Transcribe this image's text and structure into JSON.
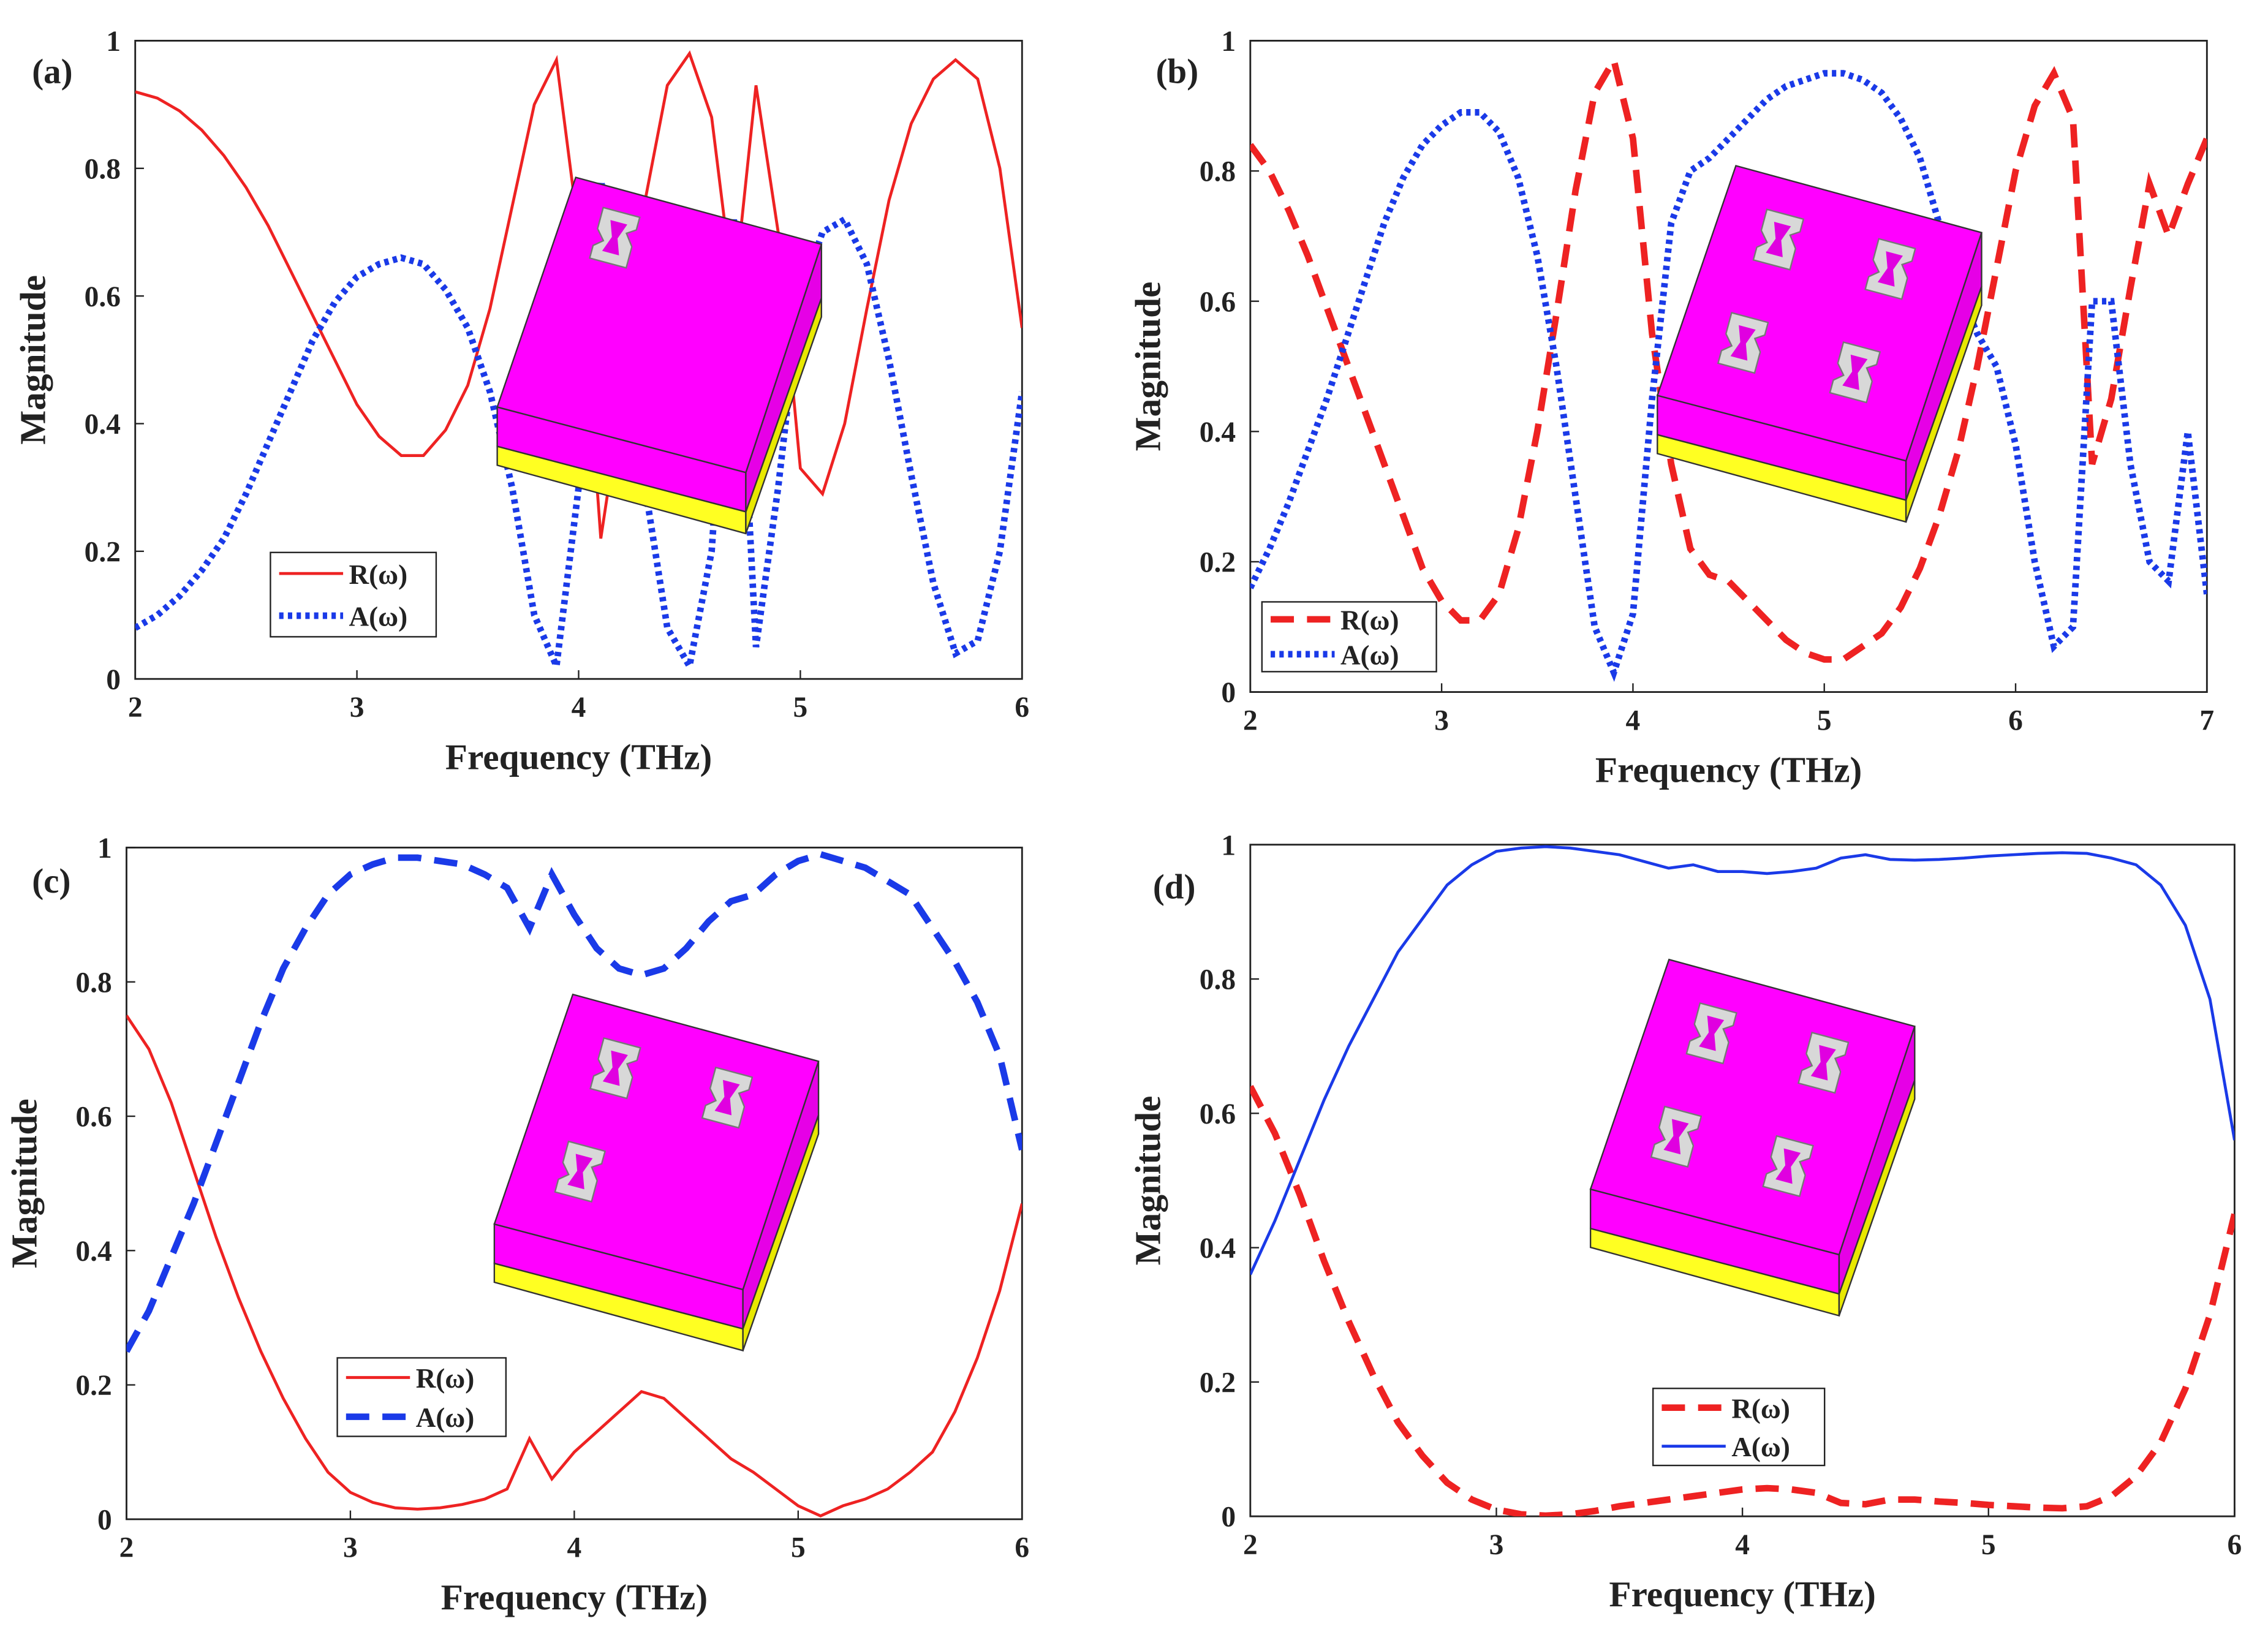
{
  "chart_data": [
    {
      "type": "line",
      "label": "(a)",
      "xlabel": "Frequency (THz)",
      "ylabel": "Magnitude",
      "xlim": [
        2,
        6
      ],
      "ylim": [
        0,
        1
      ],
      "xticks": [
        2,
        3,
        4,
        5,
        6
      ],
      "yticks": [
        0,
        0.2,
        0.4,
        0.6,
        0.8,
        1
      ],
      "x": [
        2.0,
        2.1,
        2.2,
        2.3,
        2.4,
        2.5,
        2.6,
        2.7,
        2.8,
        2.9,
        3.0,
        3.1,
        3.2,
        3.3,
        3.4,
        3.5,
        3.6,
        3.7,
        3.8,
        3.9,
        4.0,
        4.1,
        4.2,
        4.3,
        4.4,
        4.5,
        4.6,
        4.7,
        4.8,
        4.9,
        5.0,
        5.1,
        5.2,
        5.3,
        5.4,
        5.5,
        5.6,
        5.7,
        5.8,
        5.9,
        6.0
      ],
      "series": [
        {
          "name": "R(ω)",
          "color": "#ee2222",
          "style": "solid",
          "values": [
            0.92,
            0.91,
            0.89,
            0.86,
            0.82,
            0.77,
            0.71,
            0.64,
            0.57,
            0.5,
            0.43,
            0.38,
            0.35,
            0.35,
            0.39,
            0.46,
            0.58,
            0.74,
            0.9,
            0.97,
            0.7,
            0.22,
            0.45,
            0.75,
            0.93,
            0.98,
            0.88,
            0.6,
            0.93,
            0.7,
            0.33,
            0.29,
            0.4,
            0.58,
            0.75,
            0.87,
            0.94,
            0.97,
            0.94,
            0.8,
            0.55
          ]
        },
        {
          "name": "A(ω)",
          "color": "#1a3ae8",
          "style": "dotted",
          "values": [
            0.08,
            0.1,
            0.13,
            0.17,
            0.22,
            0.29,
            0.37,
            0.45,
            0.53,
            0.59,
            0.63,
            0.65,
            0.66,
            0.65,
            0.61,
            0.55,
            0.45,
            0.3,
            0.1,
            0.02,
            0.3,
            0.78,
            0.65,
            0.3,
            0.08,
            0.02,
            0.2,
            0.72,
            0.05,
            0.3,
            0.6,
            0.7,
            0.72,
            0.65,
            0.5,
            0.32,
            0.15,
            0.04,
            0.06,
            0.2,
            0.45
          ]
        }
      ]
    },
    {
      "type": "line",
      "label": "(b)",
      "xlabel": "Frequency (THz)",
      "ylabel": "Magnitude",
      "xlim": [
        2,
        7
      ],
      "ylim": [
        0,
        1
      ],
      "xticks": [
        2,
        3,
        4,
        5,
        6,
        7
      ],
      "yticks": [
        0,
        0.2,
        0.4,
        0.6,
        0.8,
        1
      ],
      "x": [
        2.0,
        2.1,
        2.2,
        2.3,
        2.4,
        2.5,
        2.6,
        2.7,
        2.8,
        2.9,
        3.0,
        3.1,
        3.2,
        3.3,
        3.4,
        3.5,
        3.6,
        3.7,
        3.8,
        3.9,
        4.0,
        4.1,
        4.2,
        4.3,
        4.4,
        4.5,
        4.6,
        4.7,
        4.8,
        4.9,
        5.0,
        5.1,
        5.2,
        5.3,
        5.4,
        5.5,
        5.6,
        5.7,
        5.8,
        5.9,
        6.0,
        6.1,
        6.2,
        6.3,
        6.4,
        6.5,
        6.6,
        6.7,
        6.8,
        6.9,
        7.0
      ],
      "series": [
        {
          "name": "R(ω)",
          "color": "#ee2222",
          "style": "dashed",
          "values": [
            0.84,
            0.8,
            0.74,
            0.67,
            0.59,
            0.51,
            0.43,
            0.35,
            0.27,
            0.19,
            0.14,
            0.11,
            0.11,
            0.15,
            0.25,
            0.4,
            0.58,
            0.77,
            0.92,
            0.97,
            0.85,
            0.55,
            0.35,
            0.22,
            0.18,
            0.17,
            0.14,
            0.11,
            0.08,
            0.06,
            0.05,
            0.05,
            0.07,
            0.09,
            0.13,
            0.19,
            0.27,
            0.37,
            0.5,
            0.65,
            0.8,
            0.9,
            0.95,
            0.88,
            0.35,
            0.45,
            0.62,
            0.78,
            0.7,
            0.78,
            0.85
          ]
        },
        {
          "name": "A(ω)",
          "color": "#1a3ae8",
          "style": "dotted",
          "values": [
            0.16,
            0.22,
            0.29,
            0.37,
            0.45,
            0.54,
            0.63,
            0.72,
            0.79,
            0.84,
            0.87,
            0.89,
            0.89,
            0.86,
            0.79,
            0.67,
            0.5,
            0.3,
            0.1,
            0.03,
            0.12,
            0.45,
            0.72,
            0.8,
            0.82,
            0.85,
            0.88,
            0.91,
            0.93,
            0.94,
            0.95,
            0.95,
            0.94,
            0.92,
            0.88,
            0.82,
            0.72,
            0.62,
            0.55,
            0.5,
            0.38,
            0.2,
            0.07,
            0.1,
            0.6,
            0.6,
            0.35,
            0.2,
            0.17,
            0.4,
            0.15
          ]
        }
      ]
    },
    {
      "type": "line",
      "label": "(c)",
      "xlabel": "Frequency (THz)",
      "ylabel": "Magnitude",
      "xlim": [
        2,
        6
      ],
      "ylim": [
        0,
        1
      ],
      "xticks": [
        2,
        3,
        4,
        5,
        6
      ],
      "yticks": [
        0,
        0.2,
        0.4,
        0.6,
        0.8,
        1
      ],
      "x": [
        2.0,
        2.1,
        2.2,
        2.3,
        2.4,
        2.5,
        2.6,
        2.7,
        2.8,
        2.9,
        3.0,
        3.1,
        3.2,
        3.3,
        3.4,
        3.5,
        3.6,
        3.7,
        3.8,
        3.9,
        4.0,
        4.1,
        4.2,
        4.3,
        4.4,
        4.5,
        4.6,
        4.7,
        4.8,
        4.9,
        5.0,
        5.1,
        5.2,
        5.3,
        5.4,
        5.5,
        5.6,
        5.7,
        5.8,
        5.9,
        6.0
      ],
      "series": [
        {
          "name": "R(ω)",
          "color": "#ee2222",
          "style": "solid",
          "values": [
            0.75,
            0.7,
            0.62,
            0.52,
            0.42,
            0.33,
            0.25,
            0.18,
            0.12,
            0.07,
            0.04,
            0.025,
            0.017,
            0.015,
            0.017,
            0.022,
            0.03,
            0.045,
            0.12,
            0.06,
            0.1,
            0.13,
            0.16,
            0.19,
            0.18,
            0.15,
            0.12,
            0.09,
            0.07,
            0.045,
            0.02,
            0.005,
            0.02,
            0.03,
            0.045,
            0.07,
            0.1,
            0.16,
            0.24,
            0.34,
            0.47
          ]
        },
        {
          "name": "A(ω)",
          "color": "#1a3ae8",
          "style": "dashed",
          "values": [
            0.25,
            0.31,
            0.39,
            0.47,
            0.56,
            0.65,
            0.74,
            0.82,
            0.88,
            0.93,
            0.96,
            0.975,
            0.985,
            0.985,
            0.98,
            0.975,
            0.96,
            0.94,
            0.88,
            0.96,
            0.9,
            0.85,
            0.82,
            0.81,
            0.82,
            0.85,
            0.89,
            0.92,
            0.93,
            0.96,
            0.98,
            0.99,
            0.98,
            0.97,
            0.95,
            0.93,
            0.88,
            0.83,
            0.77,
            0.69,
            0.55
          ]
        }
      ]
    },
    {
      "type": "line",
      "label": "(d)",
      "xlabel": "Frequency (THz)",
      "ylabel": "Magnitude",
      "xlim": [
        2,
        6
      ],
      "ylim": [
        0,
        1
      ],
      "xticks": [
        2,
        3,
        4,
        5,
        6
      ],
      "yticks": [
        0,
        0.2,
        0.4,
        0.6,
        0.8,
        1
      ],
      "x": [
        2.0,
        2.1,
        2.2,
        2.3,
        2.4,
        2.5,
        2.6,
        2.7,
        2.8,
        2.9,
        3.0,
        3.1,
        3.2,
        3.3,
        3.4,
        3.5,
        3.6,
        3.7,
        3.8,
        3.9,
        4.0,
        4.1,
        4.2,
        4.3,
        4.4,
        4.5,
        4.6,
        4.7,
        4.8,
        4.9,
        5.0,
        5.1,
        5.2,
        5.3,
        5.4,
        5.5,
        5.6,
        5.7,
        5.8,
        5.9,
        6.0
      ],
      "series": [
        {
          "name": "R(ω)",
          "color": "#ee2222",
          "style": "dashed",
          "values": [
            0.64,
            0.57,
            0.48,
            0.38,
            0.29,
            0.21,
            0.14,
            0.09,
            0.05,
            0.025,
            0.01,
            0.003,
            0.001,
            0.003,
            0.008,
            0.015,
            0.02,
            0.025,
            0.03,
            0.035,
            0.04,
            0.042,
            0.04,
            0.035,
            0.02,
            0.018,
            0.025,
            0.025,
            0.022,
            0.02,
            0.017,
            0.015,
            0.013,
            0.012,
            0.015,
            0.03,
            0.06,
            0.11,
            0.19,
            0.3,
            0.45
          ]
        },
        {
          "name": "A(ω)",
          "color": "#1a3ae8",
          "style": "solid",
          "values": [
            0.36,
            0.44,
            0.53,
            0.62,
            0.7,
            0.77,
            0.84,
            0.89,
            0.94,
            0.97,
            0.99,
            0.995,
            0.997,
            0.995,
            0.99,
            0.985,
            0.975,
            0.965,
            0.97,
            0.96,
            0.96,
            0.957,
            0.96,
            0.965,
            0.98,
            0.985,
            0.978,
            0.977,
            0.978,
            0.98,
            0.983,
            0.985,
            0.987,
            0.988,
            0.987,
            0.98,
            0.97,
            0.94,
            0.88,
            0.77,
            0.56
          ]
        }
      ]
    }
  ]
}
